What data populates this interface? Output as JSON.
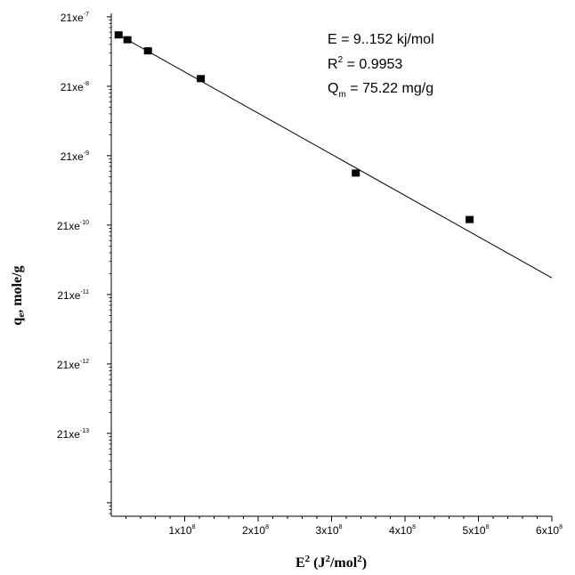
{
  "chart_data": {
    "type": "scatter",
    "xlabel": {
      "main": "E",
      "sup": "2",
      "rest": " (J",
      "sup2": "2",
      "rest2": "/mol",
      "sup3": "2",
      "end": ")"
    },
    "ylabel": {
      "main": "q",
      "sub": "e",
      "rest": ", mole/g"
    },
    "y_scale": "log",
    "xlim": [
      0,
      600000000
    ],
    "ylim_exp": [
      -14,
      -7
    ],
    "x_ticks": [
      {
        "value": 100000000,
        "label": "1x10",
        "sup": "8"
      },
      {
        "value": 200000000,
        "label": "2x10",
        "sup": "8"
      },
      {
        "value": 300000000,
        "label": "3x10",
        "sup": "8"
      },
      {
        "value": 400000000,
        "label": "4x10",
        "sup": "8"
      },
      {
        "value": 500000000,
        "label": "5x10",
        "sup": "8"
      },
      {
        "value": 600000000,
        "label": "6x10",
        "sup": "8"
      }
    ],
    "y_ticks": [
      {
        "exp": -7,
        "label": "21xe",
        "sup": "-7"
      },
      {
        "exp": -8,
        "label": "21xe",
        "sup": "-8"
      },
      {
        "exp": -9,
        "label": "21xe",
        "sup": "-9"
      },
      {
        "exp": -10,
        "label": "21xe",
        "sup": "-10"
      },
      {
        "exp": -11,
        "label": "21xe",
        "sup": "-11"
      },
      {
        "exp": -12,
        "label": "21xe",
        "sup": "-12"
      },
      {
        "exp": -13,
        "label": "21xe",
        "sup": "-13"
      }
    ],
    "points": [
      {
        "x": 10000000,
        "y_exp": -7.26
      },
      {
        "x": 22000000,
        "y_exp": -7.33
      },
      {
        "x": 50000000,
        "y_exp": -7.49
      },
      {
        "x": 122000000,
        "y_exp": -7.89
      },
      {
        "x": 333000000,
        "y_exp": -9.25
      },
      {
        "x": 488000000,
        "y_exp": -9.92
      }
    ],
    "fit_line": {
      "x": [
        10000000,
        600000000
      ],
      "y_exp": [
        -7.26,
        -10.76
      ]
    },
    "annotations": [
      {
        "text": "E = 9..152 kj/mol"
      },
      {
        "main": "R",
        "sup": "2",
        "rest": " = 0.9953"
      },
      {
        "main": "Q",
        "sub": "m",
        "rest": " = 75.22 mg/g"
      }
    ],
    "grid": false,
    "legend": "none"
  },
  "colors": {
    "axis": "#000000",
    "marker": "#000000",
    "line": "#000000",
    "background": "#ffffff"
  }
}
